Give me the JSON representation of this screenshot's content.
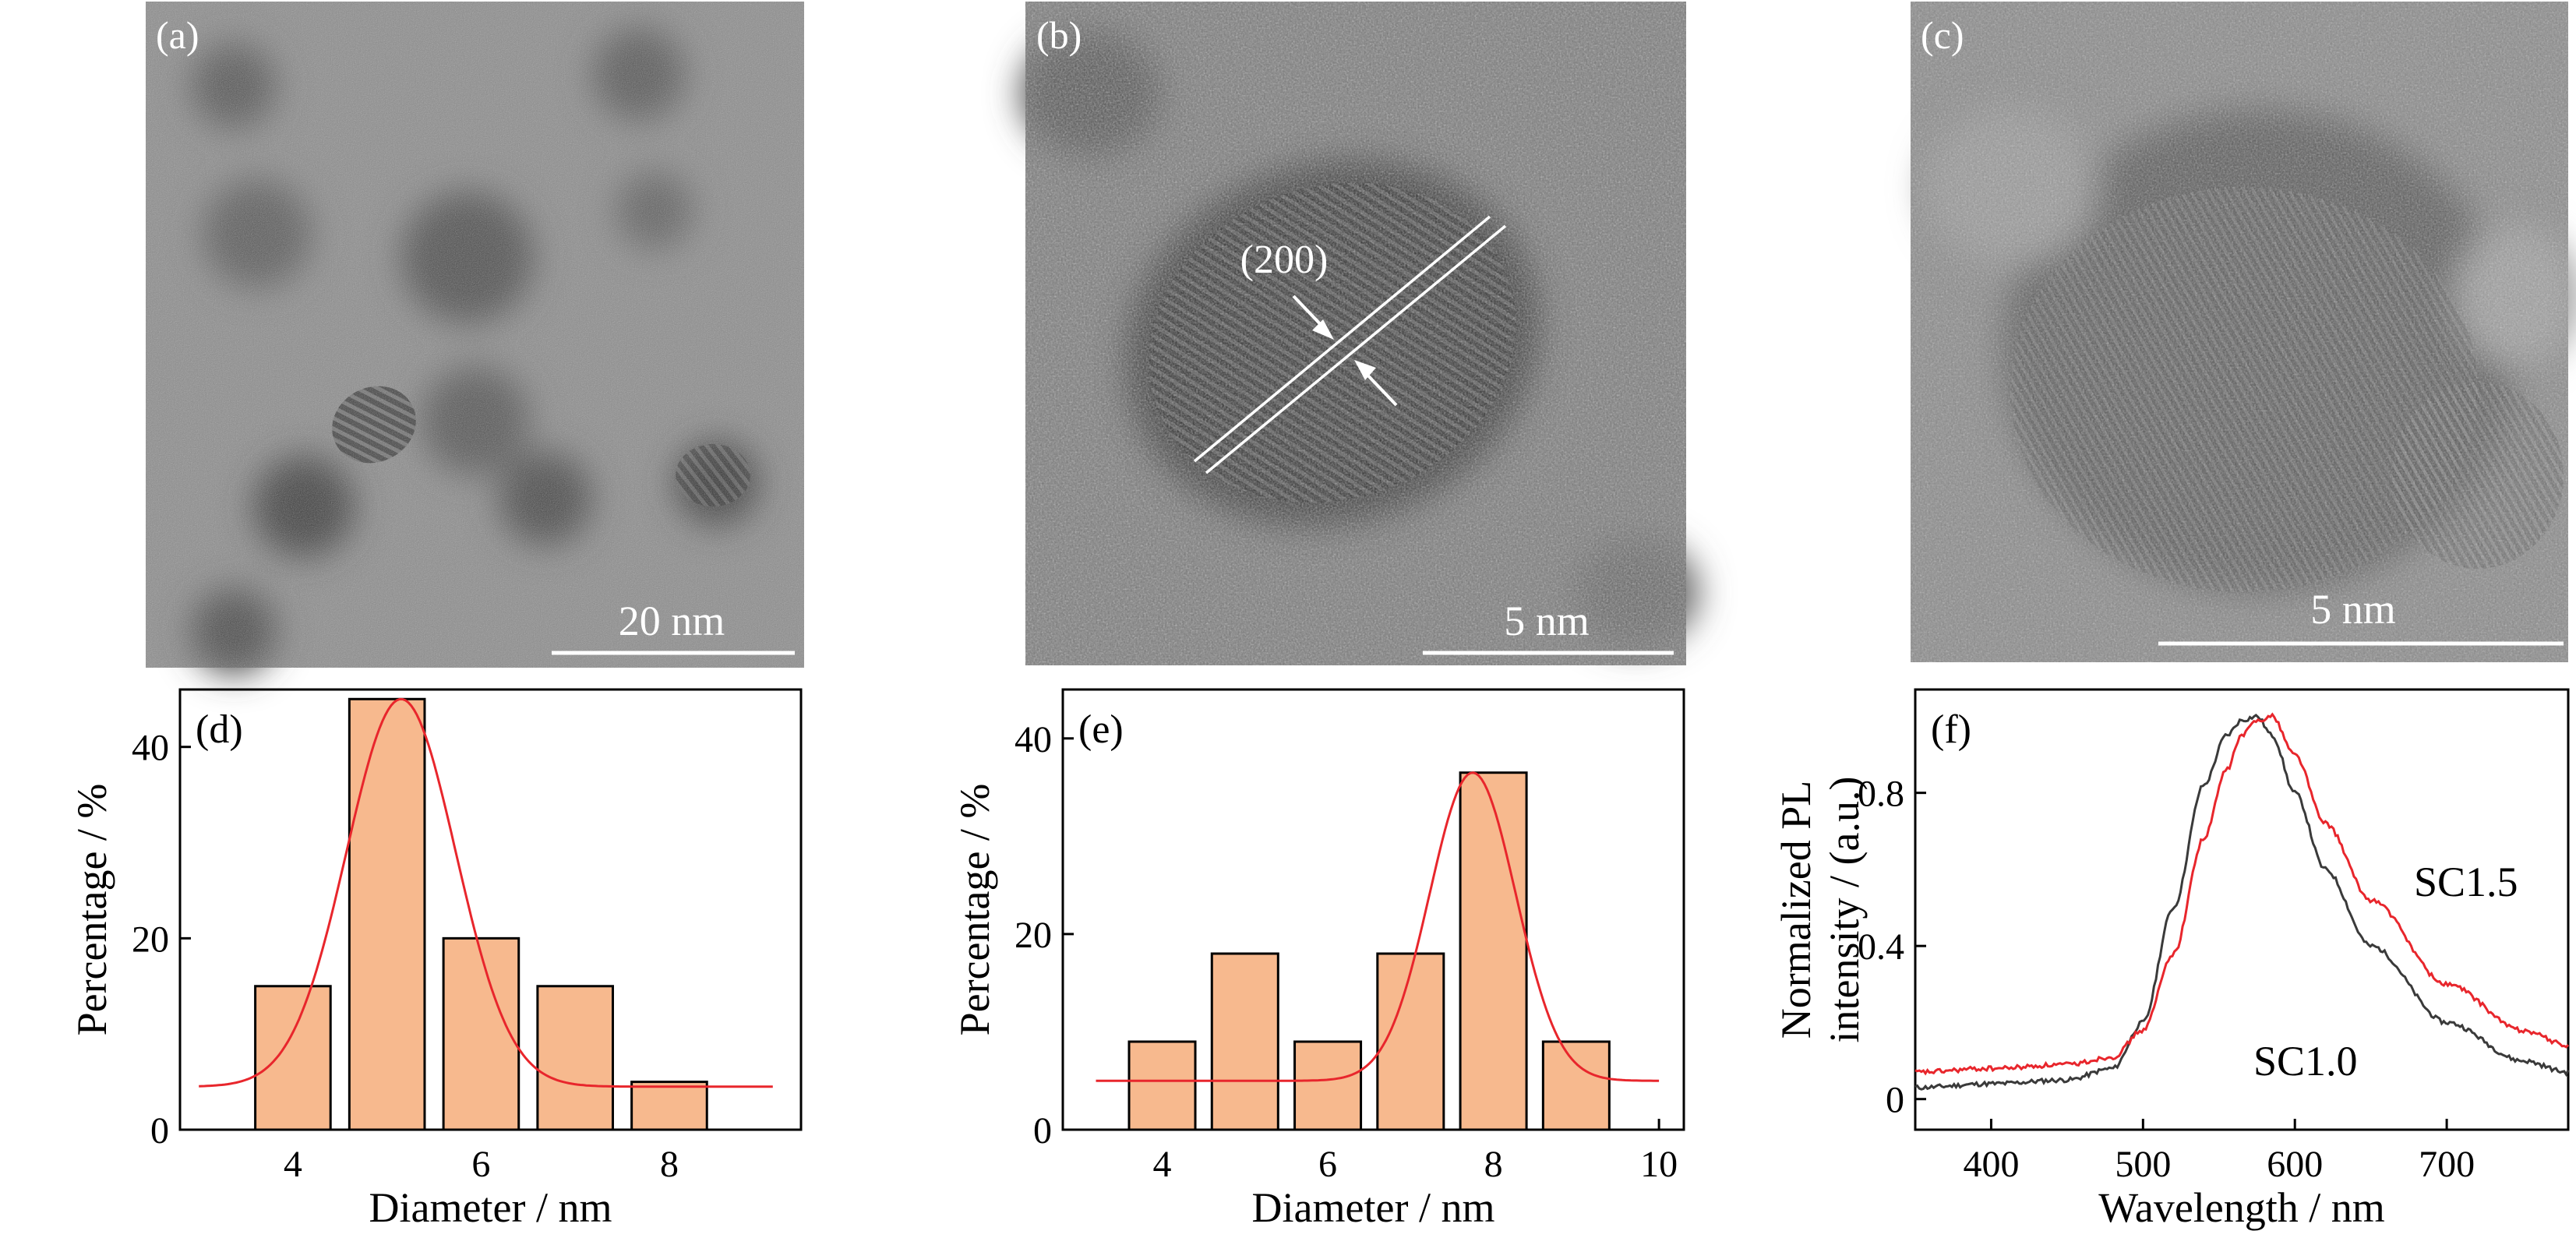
{
  "tem": [
    {
      "label": "(a)",
      "scale": "20 nm"
    },
    {
      "label": "(b)",
      "scale": "5 nm",
      "annotation": "(200)"
    },
    {
      "label": "(c)",
      "scale": "5 nm"
    }
  ],
  "colors": {
    "bar_fill": "#f7b98e",
    "fit": "#e8262c",
    "sc10": "#3a3a3a",
    "sc15": "#e8262c"
  },
  "chart_data": [
    {
      "type": "bar",
      "panel": "(d)",
      "xlabel": "Diameter / nm",
      "ylabel": "Percentage / %",
      "xlim": [
        2.8,
        9.4
      ],
      "ylim": [
        0,
        46
      ],
      "xticks": [
        4,
        6,
        8
      ],
      "yticks": [
        0,
        20,
        40
      ],
      "bar_width": 0.8,
      "categories": [
        4,
        5,
        6,
        7,
        8
      ],
      "values": [
        15,
        45,
        20,
        15,
        5
      ],
      "fit": {
        "center": 5.15,
        "amplitude": 40.5,
        "sigma": 0.58,
        "baseline": 4.5,
        "range": [
          3,
          9.1
        ]
      }
    },
    {
      "type": "bar",
      "panel": "(e)",
      "xlabel": "Diameter / nm",
      "ylabel": "Percentage / %",
      "xlim": [
        2.8,
        10.3
      ],
      "ylim": [
        0,
        45
      ],
      "xticks": [
        4,
        6,
        8,
        10
      ],
      "yticks": [
        0,
        20,
        40
      ],
      "bar_width": 0.8,
      "categories": [
        4,
        5,
        6,
        7,
        8,
        9
      ],
      "values": [
        9,
        18,
        9,
        18,
        36.5,
        9
      ],
      "fit": {
        "center": 7.75,
        "amplitude": 31.5,
        "sigma": 0.52,
        "baseline": 5,
        "range": [
          3.2,
          10
        ]
      }
    },
    {
      "type": "line",
      "panel": "(f)",
      "xlabel": "Wavelength / nm",
      "ylabel": "Normalized PL intensity / (a.u.)",
      "ylabel_lines": [
        "Normalized PL",
        "intensity / (a.u.)"
      ],
      "xlim": [
        350,
        780
      ],
      "ylim": [
        -0.08,
        1.07
      ],
      "xticks": [
        400,
        500,
        600,
        700
      ],
      "yticks": [
        0,
        0.4,
        0.8
      ],
      "series": [
        {
          "name": "SC1.0",
          "x": [
            350,
            400,
            450,
            480,
            500,
            520,
            540,
            555,
            565,
            575,
            585,
            600,
            620,
            650,
            700,
            750,
            780
          ],
          "y": [
            0.03,
            0.04,
            0.05,
            0.08,
            0.2,
            0.5,
            0.82,
            0.95,
            0.99,
            1.0,
            0.95,
            0.8,
            0.6,
            0.4,
            0.2,
            0.1,
            0.07
          ]
        },
        {
          "name": "SC1.5",
          "x": [
            350,
            400,
            450,
            480,
            500,
            520,
            540,
            555,
            565,
            575,
            585,
            600,
            620,
            650,
            700,
            750,
            780
          ],
          "y": [
            0.07,
            0.08,
            0.09,
            0.11,
            0.18,
            0.38,
            0.68,
            0.86,
            0.95,
            0.99,
            1.0,
            0.9,
            0.72,
            0.52,
            0.3,
            0.18,
            0.14
          ]
        }
      ]
    }
  ]
}
